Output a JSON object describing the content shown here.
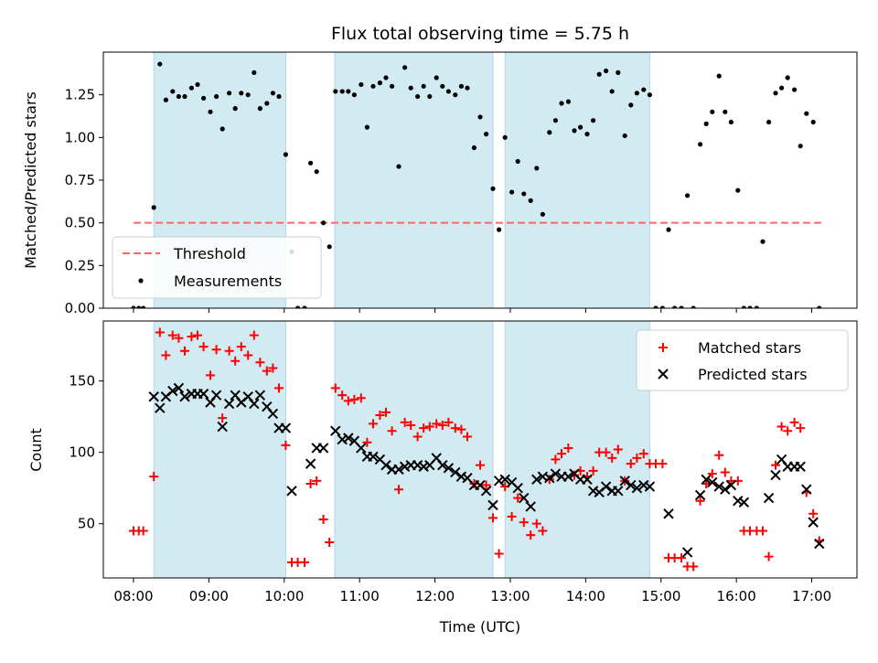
{
  "chart_data": [
    {
      "type": "scatter",
      "title": "Flux total observing time = 5.75 h",
      "xlabel": "",
      "ylabel": "Matched/Predicted stars",
      "xlim": [
        7.6,
        17.6
      ],
      "ylim": [
        0,
        1.5
      ],
      "yticks": [
        0.0,
        0.25,
        0.5,
        0.75,
        1.0,
        1.25
      ],
      "ytick_labels": [
        "0.00",
        "0.25",
        "0.50",
        "0.75",
        "1.00",
        "1.25"
      ],
      "observing_windows": [
        [
          8.27,
          10.02
        ],
        [
          10.67,
          12.77
        ],
        [
          12.93,
          14.85
        ]
      ],
      "window_color": "#add8e6",
      "threshold": {
        "name": "Threshold",
        "y": 0.5,
        "x_range": [
          8.0,
          17.15
        ],
        "color": "#ff6666"
      },
      "legend": {
        "location": "lower-left",
        "entries": [
          "Threshold",
          "Measurements"
        ]
      },
      "series": [
        {
          "name": "Measurements",
          "color": "#000000",
          "x": [
            8.0,
            8.07,
            8.13,
            8.27,
            8.35,
            8.43,
            8.52,
            8.6,
            8.68,
            8.77,
            8.85,
            8.93,
            9.02,
            9.1,
            9.18,
            9.27,
            9.35,
            9.43,
            9.52,
            9.6,
            9.68,
            9.77,
            9.85,
            9.93,
            10.02,
            10.1,
            10.18,
            10.27,
            10.35,
            10.43,
            10.52,
            10.6,
            10.68,
            10.77,
            10.85,
            10.93,
            11.02,
            11.1,
            11.18,
            11.27,
            11.35,
            11.43,
            11.52,
            11.6,
            11.68,
            11.77,
            11.85,
            11.93,
            12.02,
            12.1,
            12.18,
            12.27,
            12.35,
            12.43,
            12.52,
            12.6,
            12.68,
            12.77,
            12.85,
            12.93,
            13.02,
            13.1,
            13.18,
            13.27,
            13.35,
            13.43,
            13.52,
            13.6,
            13.68,
            13.77,
            13.85,
            13.93,
            14.02,
            14.1,
            14.18,
            14.27,
            14.35,
            14.43,
            14.52,
            14.6,
            14.68,
            14.77,
            14.85,
            14.93,
            15.02,
            15.1,
            15.18,
            15.27,
            15.35,
            15.43,
            15.52,
            15.6,
            15.68,
            15.77,
            15.85,
            15.93,
            16.02,
            16.1,
            16.18,
            16.27,
            16.35,
            16.43,
            16.52,
            16.6,
            16.68,
            16.77,
            16.85,
            16.93,
            17.02,
            17.1
          ],
          "y": [
            0.0,
            0.0,
            0.0,
            0.59,
            1.43,
            1.22,
            1.27,
            1.24,
            1.24,
            1.29,
            1.31,
            1.23,
            1.15,
            1.24,
            1.05,
            1.26,
            1.17,
            1.26,
            1.25,
            1.38,
            1.17,
            1.2,
            1.26,
            1.24,
            0.9,
            0.33,
            0.0,
            0.0,
            0.85,
            0.8,
            0.5,
            0.36,
            1.27,
            1.27,
            1.27,
            1.25,
            1.31,
            1.06,
            1.3,
            1.32,
            1.35,
            1.3,
            0.83,
            1.41,
            1.29,
            1.24,
            1.3,
            1.24,
            1.35,
            1.3,
            1.27,
            1.25,
            1.3,
            1.29,
            0.94,
            1.12,
            1.02,
            0.7,
            0.46,
            1.0,
            0.68,
            0.86,
            0.67,
            0.63,
            0.82,
            0.55,
            1.03,
            1.1,
            1.2,
            1.21,
            1.04,
            1.06,
            1.02,
            1.1,
            1.37,
            1.39,
            1.27,
            1.38,
            1.01,
            1.19,
            1.26,
            1.28,
            1.25,
            0.0,
            0.0,
            0.46,
            0.0,
            0.0,
            0.66,
            0.0,
            0.96,
            1.08,
            1.15,
            1.36,
            1.15,
            1.09,
            0.69,
            0.0,
            0.0,
            0.0,
            0.39,
            1.09,
            1.26,
            1.29,
            1.35,
            1.28,
            0.95,
            1.14,
            1.09,
            0.0
          ]
        }
      ]
    },
    {
      "type": "scatter",
      "title": "",
      "xlabel": "Time (UTC)",
      "ylabel": "Count",
      "xlim": [
        7.6,
        17.6
      ],
      "ylim": [
        12,
        192
      ],
      "xticks": [
        8,
        9,
        10,
        11,
        12,
        13,
        14,
        15,
        16,
        17
      ],
      "xtick_labels": [
        "08:00",
        "09:00",
        "10:00",
        "11:00",
        "12:00",
        "13:00",
        "14:00",
        "15:00",
        "16:00",
        "17:00"
      ],
      "yticks": [
        50,
        100,
        150
      ],
      "ytick_labels": [
        "50",
        "100",
        "150"
      ],
      "observing_windows": [
        [
          8.27,
          10.02
        ],
        [
          10.67,
          12.77
        ],
        [
          12.93,
          14.85
        ]
      ],
      "window_color": "#add8e6",
      "legend": {
        "location": "top-right",
        "entries": [
          "Matched stars",
          "Predicted stars"
        ]
      },
      "series": [
        {
          "name": "Matched stars",
          "marker": "plus",
          "color": "#ff0000",
          "x": [
            8.0,
            8.07,
            8.13,
            8.27,
            8.35,
            8.43,
            8.52,
            8.6,
            8.68,
            8.77,
            8.85,
            8.93,
            9.02,
            9.1,
            9.18,
            9.27,
            9.35,
            9.43,
            9.52,
            9.6,
            9.68,
            9.77,
            9.85,
            9.93,
            10.02,
            10.1,
            10.18,
            10.27,
            10.35,
            10.43,
            10.52,
            10.6,
            10.68,
            10.77,
            10.85,
            10.93,
            11.02,
            11.1,
            11.18,
            11.27,
            11.35,
            11.43,
            11.52,
            11.6,
            11.68,
            11.77,
            11.85,
            11.93,
            12.02,
            12.1,
            12.18,
            12.27,
            12.35,
            12.43,
            12.52,
            12.6,
            12.68,
            12.77,
            12.85,
            12.93,
            13.02,
            13.1,
            13.18,
            13.27,
            13.35,
            13.43,
            13.52,
            13.6,
            13.68,
            13.77,
            13.85,
            13.93,
            14.02,
            14.1,
            14.18,
            14.27,
            14.35,
            14.43,
            14.52,
            14.6,
            14.68,
            14.77,
            14.85,
            14.93,
            15.02,
            15.1,
            15.18,
            15.27,
            15.35,
            15.43,
            15.52,
            15.6,
            15.68,
            15.77,
            15.85,
            15.93,
            16.02,
            16.1,
            16.18,
            16.27,
            16.35,
            16.43,
            16.52,
            16.6,
            16.68,
            16.77,
            16.85,
            16.93,
            17.02,
            17.1
          ],
          "y": [
            45,
            45,
            45,
            83,
            184,
            168,
            182,
            180,
            171,
            181,
            182,
            174,
            154,
            172,
            124,
            171,
            164,
            174,
            168,
            182,
            163,
            157,
            159,
            145,
            105,
            23,
            23,
            23,
            78,
            80,
            53,
            37,
            145,
            140,
            136,
            137,
            138,
            107,
            120,
            126,
            128,
            115,
            74,
            121,
            119,
            111,
            117,
            118,
            120,
            119,
            121,
            117,
            116,
            111,
            78,
            91,
            77,
            54,
            29,
            76,
            55,
            68,
            51,
            42,
            50,
            45,
            81,
            95,
            99,
            103,
            84,
            87,
            83,
            87,
            100,
            100,
            96,
            102,
            80,
            92,
            96,
            99,
            92,
            92,
            92,
            26,
            26,
            26,
            20,
            20,
            66,
            78,
            85,
            98,
            86,
            80,
            80,
            45,
            45,
            45,
            45,
            27,
            91,
            118,
            115,
            121,
            117,
            72,
            57,
            38
          ]
        },
        {
          "name": "Predicted stars",
          "marker": "x",
          "color": "#000000",
          "x": [
            8.27,
            8.35,
            8.43,
            8.52,
            8.6,
            8.68,
            8.77,
            8.85,
            8.93,
            9.02,
            9.1,
            9.18,
            9.27,
            9.35,
            9.43,
            9.52,
            9.6,
            9.68,
            9.77,
            9.85,
            9.93,
            10.02,
            10.1,
            10.35,
            10.43,
            10.52,
            10.68,
            10.77,
            10.85,
            10.93,
            11.02,
            11.1,
            11.18,
            11.27,
            11.35,
            11.43,
            11.52,
            11.6,
            11.68,
            11.77,
            11.85,
            11.93,
            12.02,
            12.1,
            12.18,
            12.27,
            12.35,
            12.43,
            12.52,
            12.6,
            12.68,
            12.77,
            12.85,
            12.93,
            13.02,
            13.1,
            13.18,
            13.27,
            13.35,
            13.43,
            13.52,
            13.6,
            13.68,
            13.77,
            13.85,
            13.93,
            14.02,
            14.1,
            14.18,
            14.27,
            14.35,
            14.43,
            14.52,
            14.6,
            14.68,
            14.77,
            14.85,
            15.1,
            15.35,
            15.52,
            15.6,
            15.68,
            15.77,
            15.85,
            15.93,
            16.02,
            16.1,
            16.43,
            16.52,
            16.6,
            16.68,
            16.77,
            16.85,
            16.93,
            17.02,
            17.1
          ],
          "y": [
            139,
            131,
            139,
            143,
            145,
            139,
            141,
            141,
            141,
            135,
            140,
            118,
            134,
            140,
            135,
            139,
            134,
            140,
            132,
            127,
            117,
            117,
            73,
            92,
            103,
            103,
            115,
            109,
            110,
            108,
            103,
            97,
            97,
            95,
            91,
            88,
            88,
            90,
            91,
            91,
            90,
            91,
            96,
            91,
            89,
            86,
            83,
            82,
            77,
            77,
            73,
            63,
            80,
            81,
            79,
            75,
            68,
            62,
            81,
            83,
            82,
            85,
            83,
            83,
            85,
            81,
            81,
            73,
            72,
            76,
            73,
            73,
            80,
            77,
            75,
            77,
            76,
            57,
            30,
            70,
            81,
            79,
            76,
            74,
            77,
            66,
            65,
            68,
            84,
            95,
            90,
            90,
            90,
            74,
            51,
            36
          ]
        }
      ]
    }
  ]
}
